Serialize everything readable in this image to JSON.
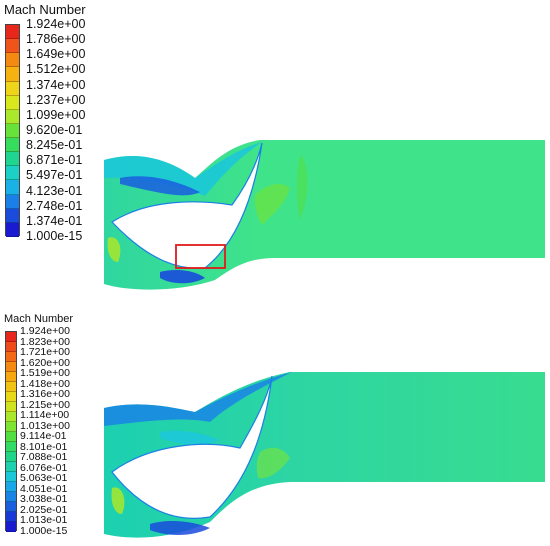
{
  "top_panel": {
    "legend_title": "Mach Number",
    "ticks": [
      "1.924e+00",
      "1.786e+00",
      "1.649e+00",
      "1.512e+00",
      "1.374e+00",
      "1.237e+00",
      "1.099e+00",
      "9.620e-01",
      "8.245e-01",
      "6.871e-01",
      "5.497e-01",
      "4.123e-01",
      "2.748e-01",
      "1.374e-01",
      "1.000e-15"
    ],
    "colors": [
      "#e8271c",
      "#f0541a",
      "#f58a12",
      "#f5b210",
      "#eed51a",
      "#d8e81c",
      "#a9e82a",
      "#66e23a",
      "#36dc5c",
      "#1fd58f",
      "#1cd0c6",
      "#1ab1e6",
      "#1a7fe6",
      "#1a4bdc",
      "#1a1ad0"
    ]
  },
  "bottom_panel": {
    "legend_title": "Mach Number",
    "ticks": [
      "1.924e+00",
      "1.823e+00",
      "1.721e+00",
      "1.620e+00",
      "1.519e+00",
      "1.418e+00",
      "1.316e+00",
      "1.215e+00",
      "1.114e+00",
      "1.013e+00",
      "9.114e-01",
      "8.101e-01",
      "7.088e-01",
      "6.076e-01",
      "5.063e-01",
      "4.051e-01",
      "3.038e-01",
      "2.025e-01",
      "1.013e-01",
      "1.000e-15"
    ],
    "colors": [
      "#e8271c",
      "#ee4a1a",
      "#f26a16",
      "#f58a12",
      "#f5a810",
      "#f2c412",
      "#e8d81a",
      "#cfe41e",
      "#a9e82a",
      "#7de434",
      "#52df44",
      "#32da66",
      "#20d58a",
      "#1cd0b0",
      "#1cc8d8",
      "#1aa8e8",
      "#1a84e6",
      "#1a5ee0",
      "#1a3ad8",
      "#1a1ad0"
    ]
  },
  "colors": {
    "field_base": "#3fe38a",
    "high_speed": "#a9e82a",
    "low_speed": "#1a4bdc",
    "highlight_box": "#e01b1b"
  }
}
